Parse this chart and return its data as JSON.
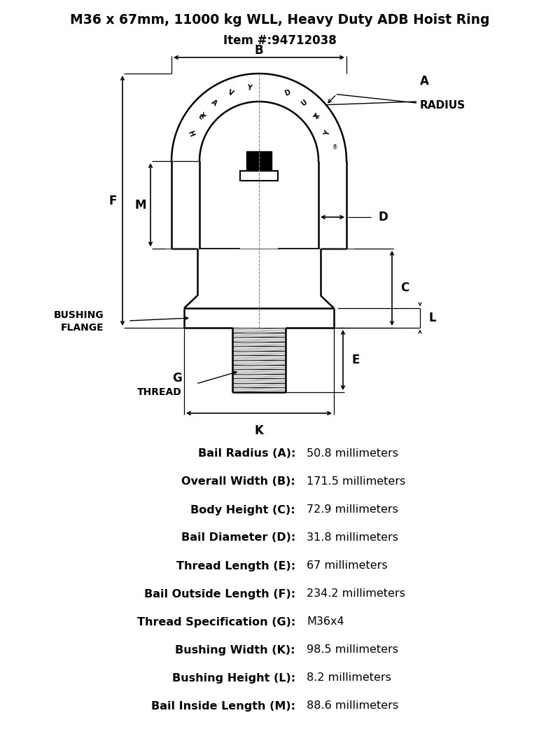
{
  "title_line1": "M36 x 67mm, 11000 kg WLL, Heavy Duty ADB Hoist Ring",
  "title_line2": "Item #:94712038",
  "specs": [
    [
      "Bail Radius (A):",
      "50.8 millimeters"
    ],
    [
      "Overall Width (B):",
      "171.5 millimeters"
    ],
    [
      "Body Height (C):",
      "72.9 millimeters"
    ],
    [
      "Bail Diameter (D):",
      "31.8 millimeters"
    ],
    [
      "Thread Length (E):",
      "67 millimeters"
    ],
    [
      "Bail Outside Length (F):",
      "234.2 millimeters"
    ],
    [
      "Thread Specification (G):",
      "M36x4"
    ],
    [
      "Bushing Width (K):",
      "98.5 millimeters"
    ],
    [
      "Bushing Height (L):",
      "8.2 millimeters"
    ],
    [
      "Bail Inside Length (M):",
      "88.6 millimeters"
    ]
  ],
  "bg_color": "#ffffff",
  "line_color": "#000000"
}
